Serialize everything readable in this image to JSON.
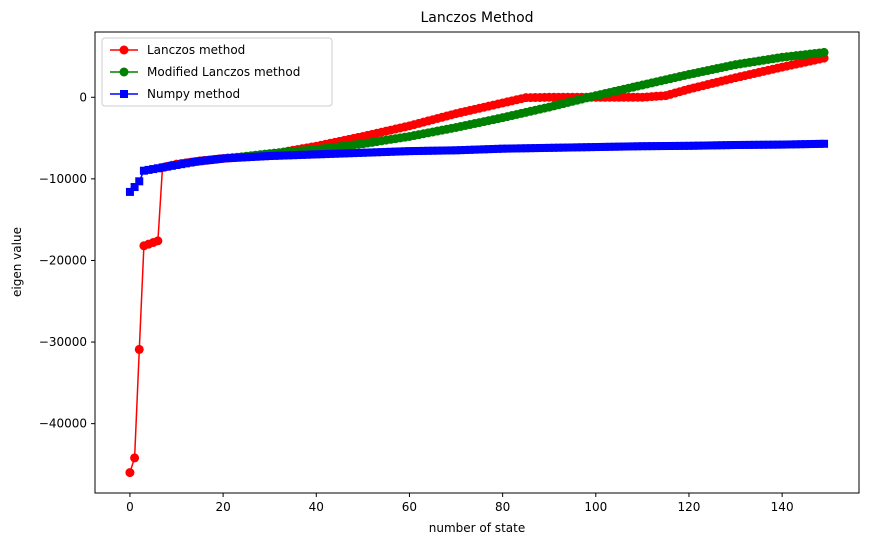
{
  "chart_data": {
    "type": "line",
    "title": "Lanczos Method",
    "xlabel": "number of state",
    "ylabel": "eigen value",
    "xlim": [
      -7.5,
      156.5
    ],
    "ylim": [
      -48500,
      8000
    ],
    "xticks": [
      0,
      20,
      40,
      60,
      80,
      100,
      120,
      140
    ],
    "yticks": [
      -40000,
      -30000,
      -20000,
      -10000,
      0
    ],
    "ytick_labels": [
      "−40000",
      "−30000",
      "−20000",
      "−10000",
      "0"
    ],
    "grid": false,
    "legend_position": "top-left",
    "series": [
      {
        "name": "Lanczos method",
        "color": "#ff0000",
        "marker": "circle",
        "points": [
          [
            0,
            -46000
          ],
          [
            1,
            -44200
          ],
          [
            2,
            -30900
          ],
          [
            3,
            -18200
          ],
          [
            4,
            -18000
          ],
          [
            5,
            -17800
          ],
          [
            6,
            -17600
          ],
          [
            7,
            -8600
          ],
          [
            10,
            -8200
          ],
          [
            15,
            -7800
          ],
          [
            20,
            -7500
          ],
          [
            30,
            -7000
          ],
          [
            40,
            -6000
          ],
          [
            50,
            -4800
          ],
          [
            60,
            -3500
          ],
          [
            70,
            -2000
          ],
          [
            80,
            -700
          ],
          [
            85,
            -50
          ],
          [
            90,
            0
          ],
          [
            100,
            0
          ],
          [
            110,
            0
          ],
          [
            115,
            200
          ],
          [
            120,
            1000
          ],
          [
            130,
            2400
          ],
          [
            140,
            3700
          ],
          [
            149,
            4800
          ]
        ]
      },
      {
        "name": "Modified Lanczos method",
        "color": "#008000",
        "marker": "circle",
        "points": [
          [
            24,
            -7300
          ],
          [
            30,
            -6900
          ],
          [
            40,
            -6400
          ],
          [
            50,
            -5700
          ],
          [
            60,
            -4800
          ],
          [
            70,
            -3700
          ],
          [
            80,
            -2500
          ],
          [
            90,
            -1200
          ],
          [
            100,
            200
          ],
          [
            110,
            1500
          ],
          [
            120,
            2800
          ],
          [
            130,
            4000
          ],
          [
            140,
            4900
          ],
          [
            149,
            5500
          ]
        ]
      },
      {
        "name": "Numpy method",
        "color": "#0000ff",
        "marker": "square",
        "points": [
          [
            0,
            -11600
          ],
          [
            1,
            -11000
          ],
          [
            2,
            -10300
          ],
          [
            3,
            -9000
          ],
          [
            4,
            -8900
          ],
          [
            5,
            -8800
          ],
          [
            6,
            -8700
          ],
          [
            7,
            -8600
          ],
          [
            10,
            -8300
          ],
          [
            14,
            -7900
          ],
          [
            20,
            -7500
          ],
          [
            30,
            -7200
          ],
          [
            40,
            -7000
          ],
          [
            50,
            -6800
          ],
          [
            60,
            -6600
          ],
          [
            70,
            -6500
          ],
          [
            80,
            -6300
          ],
          [
            90,
            -6200
          ],
          [
            100,
            -6100
          ],
          [
            110,
            -6000
          ],
          [
            120,
            -5950
          ],
          [
            130,
            -5850
          ],
          [
            140,
            -5800
          ],
          [
            149,
            -5700
          ]
        ]
      }
    ]
  }
}
